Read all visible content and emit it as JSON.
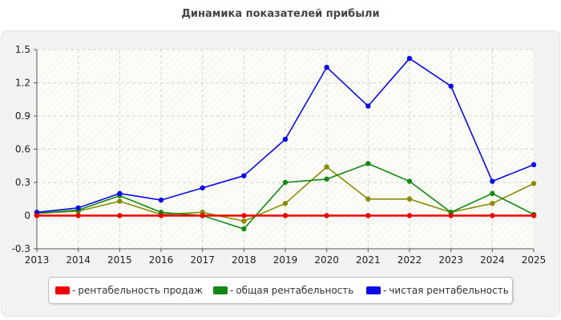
{
  "chart_data": {
    "type": "line",
    "title": "Динамика показателей прибыли",
    "xlabel": "",
    "ylabel": "",
    "categories": [
      "2013",
      "2014",
      "2015",
      "2016",
      "2017",
      "2018",
      "2019",
      "2020",
      "2021",
      "2022",
      "2023",
      "2024",
      "2025"
    ],
    "ylim": [
      -0.3,
      1.5
    ],
    "yticks": [
      "-0.3",
      "0",
      "0.3",
      "0.6",
      "0.9",
      "1.2",
      "1.5"
    ],
    "grid": true,
    "legend_position": "bottom",
    "series": [
      {
        "name": "рентабельность продаж",
        "color": "#ee0000",
        "legend": true,
        "values": [
          0,
          0,
          0,
          0,
          0,
          0,
          0,
          0,
          0,
          0,
          0,
          0,
          0
        ]
      },
      {
        "name": "общая рентабельность",
        "color": "#118811",
        "legend": true,
        "values": [
          0.02,
          0.05,
          0.18,
          0.03,
          0.0,
          -0.12,
          0.3,
          0.33,
          0.47,
          0.31,
          0.03,
          0.2,
          0.01
        ]
      },
      {
        "name": "чистая рентабельность",
        "color": "#0a0ae6",
        "legend": true,
        "values": [
          0.03,
          0.07,
          0.2,
          0.14,
          0.25,
          0.36,
          0.69,
          1.34,
          0.99,
          1.42,
          1.17,
          0.31,
          0.46
        ]
      },
      {
        "name": "",
        "color": "#8a8a00",
        "legend": false,
        "values": [
          0.02,
          0.04,
          0.13,
          0.01,
          0.03,
          -0.05,
          0.11,
          0.44,
          0.15,
          0.15,
          0.03,
          0.11,
          0.29
        ]
      }
    ]
  },
  "legend": {
    "dash": "-",
    "items": [
      {
        "label": "рентабельность продаж",
        "color": "#ee0000"
      },
      {
        "label": "общая рентабельность",
        "color": "#118811"
      },
      {
        "label": "чистая рентабельность",
        "color": "#0a0ae6"
      }
    ]
  }
}
